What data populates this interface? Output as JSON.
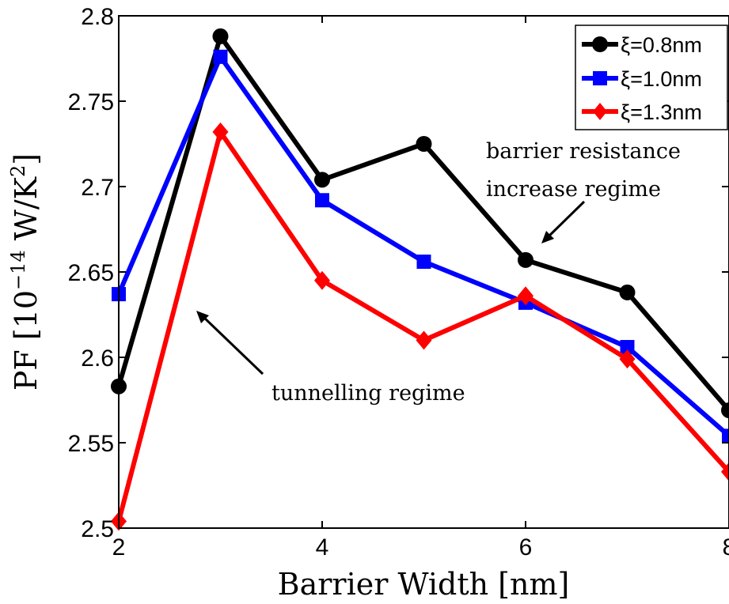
{
  "chart_data": {
    "type": "line",
    "title": "",
    "xlabel": "Barrier Width [nm]",
    "ylabel_parts": {
      "main": "PF [10",
      "exp": "−14",
      "mid": " W/K",
      "exp2": "2",
      "end": "]"
    },
    "xlim": [
      2,
      8
    ],
    "ylim": [
      2.5,
      2.8
    ],
    "xticks": [
      2,
      4,
      6,
      8
    ],
    "yticks": [
      2.5,
      2.55,
      2.6,
      2.65,
      2.7,
      2.75,
      2.8
    ],
    "xtick_labels": [
      "2",
      "4",
      "6",
      "8"
    ],
    "ytick_labels": [
      "2.5",
      "2.55",
      "2.6",
      "2.65",
      "2.7",
      "2.75",
      "2.8"
    ],
    "grid": false,
    "legend_position": "top-right",
    "series": [
      {
        "name": "ξ=0.8nm",
        "color": "#000000",
        "marker": "circle",
        "x": [
          2,
          3,
          4,
          5,
          6,
          7,
          8
        ],
        "y": [
          2.583,
          2.788,
          2.704,
          2.725,
          2.657,
          2.638,
          2.569
        ]
      },
      {
        "name": "ξ=1.0nm",
        "color": "#0000ff",
        "marker": "square",
        "x": [
          2,
          3,
          4,
          5,
          6,
          7,
          8
        ],
        "y": [
          2.637,
          2.776,
          2.692,
          2.656,
          2.632,
          2.606,
          2.554
        ]
      },
      {
        "name": "ξ=1.3nm",
        "color": "#ff0000",
        "marker": "diamond",
        "x": [
          2,
          3,
          4,
          5,
          6,
          7,
          8
        ],
        "y": [
          2.504,
          2.732,
          2.645,
          2.61,
          2.636,
          2.599,
          2.533
        ]
      }
    ],
    "annotations": [
      {
        "lines": [
          "barrier resistance",
          "increase regime"
        ]
      },
      {
        "lines": [
          "tunnelling regime"
        ]
      }
    ]
  }
}
